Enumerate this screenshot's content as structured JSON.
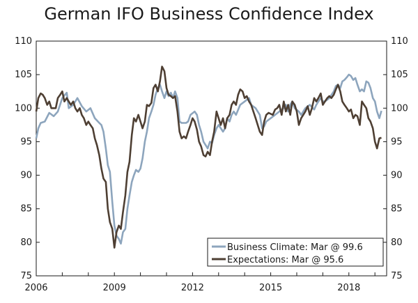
{
  "chart_data": {
    "type": "line",
    "title": "German IFO Business Confidence Index",
    "xlabel": "",
    "ylabel": "",
    "xlim": [
      2006.0,
      2019.45
    ],
    "ylim": [
      75,
      110
    ],
    "y_ticks": [
      75,
      80,
      85,
      90,
      95,
      100,
      105,
      110
    ],
    "x_ticks": [
      2006,
      2009,
      2012,
      2015,
      2018
    ],
    "grid": false,
    "legend_position": "bottom-right",
    "series": [
      {
        "name": "Business Climate: Mar @ 99.6",
        "color": "#8da5bd",
        "points": [
          [
            2006.0,
            95.5
          ],
          [
            2006.08,
            97.0
          ],
          [
            2006.17,
            97.8
          ],
          [
            2006.33,
            98.0
          ],
          [
            2006.5,
            99.3
          ],
          [
            2006.67,
            98.8
          ],
          [
            2006.83,
            99.5
          ],
          [
            2007.0,
            101.5
          ],
          [
            2007.17,
            102.3
          ],
          [
            2007.25,
            100.0
          ],
          [
            2007.42,
            100.5
          ],
          [
            2007.58,
            101.5
          ],
          [
            2007.75,
            100.3
          ],
          [
            2007.92,
            99.5
          ],
          [
            2008.08,
            100.0
          ],
          [
            2008.25,
            98.5
          ],
          [
            2008.42,
            97.8
          ],
          [
            2008.5,
            97.5
          ],
          [
            2008.58,
            96.5
          ],
          [
            2008.67,
            94.0
          ],
          [
            2008.75,
            91.5
          ],
          [
            2008.83,
            90.5
          ],
          [
            2008.92,
            86.0
          ],
          [
            2009.0,
            82.5
          ],
          [
            2009.08,
            81.0
          ],
          [
            2009.17,
            80.5
          ],
          [
            2009.25,
            79.8
          ],
          [
            2009.33,
            81.5
          ],
          [
            2009.42,
            82.0
          ],
          [
            2009.5,
            85.0
          ],
          [
            2009.58,
            87.0
          ],
          [
            2009.67,
            89.0
          ],
          [
            2009.75,
            90.0
          ],
          [
            2009.83,
            90.8
          ],
          [
            2009.92,
            90.5
          ],
          [
            2010.0,
            91.0
          ],
          [
            2010.08,
            92.5
          ],
          [
            2010.17,
            95.0
          ],
          [
            2010.25,
            96.5
          ],
          [
            2010.33,
            98.5
          ],
          [
            2010.42,
            99.5
          ],
          [
            2010.5,
            100.5
          ],
          [
            2010.58,
            102.0
          ],
          [
            2010.67,
            103.0
          ],
          [
            2010.75,
            103.5
          ],
          [
            2010.83,
            102.5
          ],
          [
            2010.92,
            101.5
          ],
          [
            2011.0,
            102.5
          ],
          [
            2011.08,
            101.8
          ],
          [
            2011.17,
            102.3
          ],
          [
            2011.25,
            101.5
          ],
          [
            2011.33,
            102.5
          ],
          [
            2011.42,
            101.5
          ],
          [
            2011.5,
            98.0
          ],
          [
            2011.58,
            97.8
          ],
          [
            2011.67,
            97.8
          ],
          [
            2011.75,
            97.8
          ],
          [
            2011.83,
            98.0
          ],
          [
            2011.92,
            99.0
          ],
          [
            2012.08,
            99.5
          ],
          [
            2012.17,
            99.0
          ],
          [
            2012.25,
            97.5
          ],
          [
            2012.33,
            96.5
          ],
          [
            2012.42,
            95.0
          ],
          [
            2012.5,
            94.5
          ],
          [
            2012.58,
            94.0
          ],
          [
            2012.67,
            95.0
          ],
          [
            2012.75,
            94.8
          ],
          [
            2012.83,
            96.0
          ],
          [
            2012.92,
            97.0
          ],
          [
            2013.0,
            97.5
          ],
          [
            2013.17,
            96.5
          ],
          [
            2013.25,
            97.0
          ],
          [
            2013.33,
            98.5
          ],
          [
            2013.42,
            98.0
          ],
          [
            2013.5,
            99.0
          ],
          [
            2013.58,
            99.5
          ],
          [
            2013.67,
            99.0
          ],
          [
            2013.83,
            100.5
          ],
          [
            2014.0,
            101.0
          ],
          [
            2014.17,
            101.5
          ],
          [
            2014.25,
            100.5
          ],
          [
            2014.42,
            100.0
          ],
          [
            2014.58,
            99.0
          ],
          [
            2014.67,
            97.0
          ],
          [
            2014.75,
            97.3
          ],
          [
            2014.83,
            98.0
          ],
          [
            2015.0,
            98.5
          ],
          [
            2015.17,
            99.0
          ],
          [
            2015.33,
            99.5
          ],
          [
            2015.42,
            99.8
          ],
          [
            2015.5,
            100.0
          ],
          [
            2015.58,
            100.5
          ],
          [
            2015.67,
            99.5
          ],
          [
            2015.75,
            100.5
          ],
          [
            2015.83,
            101.0
          ],
          [
            2015.92,
            100.0
          ],
          [
            2016.08,
            99.5
          ],
          [
            2016.17,
            99.0
          ],
          [
            2016.25,
            99.5
          ],
          [
            2016.33,
            100.0
          ],
          [
            2016.5,
            100.5
          ],
          [
            2016.67,
            99.8
          ],
          [
            2016.75,
            100.5
          ],
          [
            2016.83,
            101.0
          ],
          [
            2016.92,
            101.5
          ],
          [
            2017.0,
            101.0
          ],
          [
            2017.08,
            101.0
          ],
          [
            2017.25,
            101.5
          ],
          [
            2017.42,
            102.5
          ],
          [
            2017.5,
            103.3
          ],
          [
            2017.58,
            103.5
          ],
          [
            2017.67,
            103.0
          ],
          [
            2017.75,
            104.0
          ],
          [
            2017.83,
            104.2
          ],
          [
            2017.92,
            104.6
          ],
          [
            2018.0,
            105.0
          ],
          [
            2018.08,
            104.8
          ],
          [
            2018.17,
            104.2
          ],
          [
            2018.25,
            104.5
          ],
          [
            2018.33,
            103.5
          ],
          [
            2018.42,
            102.5
          ],
          [
            2018.5,
            102.8
          ],
          [
            2018.58,
            102.5
          ],
          [
            2018.67,
            104.0
          ],
          [
            2018.75,
            103.8
          ],
          [
            2018.83,
            103.0
          ],
          [
            2018.92,
            101.5
          ],
          [
            2019.0,
            101.0
          ],
          [
            2019.08,
            99.5
          ],
          [
            2019.17,
            98.5
          ],
          [
            2019.25,
            99.6
          ]
        ]
      },
      {
        "name": "Expectations: Mar @ 95.6",
        "color": "#4e3f33",
        "points": [
          [
            2006.0,
            99.5
          ],
          [
            2006.08,
            101.5
          ],
          [
            2006.17,
            102.2
          ],
          [
            2006.25,
            102.0
          ],
          [
            2006.33,
            101.5
          ],
          [
            2006.42,
            100.5
          ],
          [
            2006.5,
            101.0
          ],
          [
            2006.58,
            100.0
          ],
          [
            2006.75,
            100.0
          ],
          [
            2006.83,
            101.5
          ],
          [
            2006.92,
            102.0
          ],
          [
            2007.0,
            102.5
          ],
          [
            2007.08,
            101.0
          ],
          [
            2007.17,
            101.5
          ],
          [
            2007.25,
            101.0
          ],
          [
            2007.33,
            100.5
          ],
          [
            2007.42,
            101.0
          ],
          [
            2007.5,
            100.0
          ],
          [
            2007.58,
            99.5
          ],
          [
            2007.67,
            100.0
          ],
          [
            2007.75,
            99.0
          ],
          [
            2007.83,
            98.5
          ],
          [
            2007.92,
            97.5
          ],
          [
            2008.0,
            98.0
          ],
          [
            2008.08,
            97.5
          ],
          [
            2008.17,
            97.0
          ],
          [
            2008.25,
            95.5
          ],
          [
            2008.33,
            94.5
          ],
          [
            2008.42,
            93.0
          ],
          [
            2008.5,
            91.0
          ],
          [
            2008.58,
            89.5
          ],
          [
            2008.67,
            89.0
          ],
          [
            2008.75,
            85.0
          ],
          [
            2008.83,
            83.0
          ],
          [
            2008.92,
            82.0
          ],
          [
            2009.0,
            79.2
          ],
          [
            2009.08,
            81.5
          ],
          [
            2009.17,
            82.5
          ],
          [
            2009.25,
            82.0
          ],
          [
            2009.33,
            84.5
          ],
          [
            2009.42,
            87.0
          ],
          [
            2009.5,
            90.5
          ],
          [
            2009.58,
            92.0
          ],
          [
            2009.67,
            96.0
          ],
          [
            2009.75,
            98.5
          ],
          [
            2009.83,
            98.0
          ],
          [
            2009.92,
            99.0
          ],
          [
            2010.0,
            98.0
          ],
          [
            2010.08,
            97.0
          ],
          [
            2010.17,
            98.0
          ],
          [
            2010.25,
            100.5
          ],
          [
            2010.33,
            100.3
          ],
          [
            2010.42,
            100.8
          ],
          [
            2010.5,
            103.0
          ],
          [
            2010.58,
            103.5
          ],
          [
            2010.67,
            102.5
          ],
          [
            2010.75,
            104.0
          ],
          [
            2010.83,
            106.2
          ],
          [
            2010.92,
            105.5
          ],
          [
            2011.0,
            103.0
          ],
          [
            2011.08,
            102.0
          ],
          [
            2011.17,
            101.8
          ],
          [
            2011.25,
            101.5
          ],
          [
            2011.33,
            101.8
          ],
          [
            2011.42,
            99.5
          ],
          [
            2011.5,
            96.5
          ],
          [
            2011.58,
            95.5
          ],
          [
            2011.67,
            95.8
          ],
          [
            2011.75,
            95.5
          ],
          [
            2011.83,
            96.5
          ],
          [
            2011.92,
            97.5
          ],
          [
            2012.0,
            98.5
          ],
          [
            2012.08,
            98.0
          ],
          [
            2012.17,
            96.8
          ],
          [
            2012.25,
            95.0
          ],
          [
            2012.33,
            94.3
          ],
          [
            2012.42,
            93.0
          ],
          [
            2012.5,
            92.8
          ],
          [
            2012.58,
            93.5
          ],
          [
            2012.67,
            93.0
          ],
          [
            2012.75,
            95.0
          ],
          [
            2012.83,
            96.5
          ],
          [
            2012.92,
            99.5
          ],
          [
            2013.0,
            98.5
          ],
          [
            2013.08,
            97.5
          ],
          [
            2013.17,
            98.5
          ],
          [
            2013.25,
            97.0
          ],
          [
            2013.33,
            98.5
          ],
          [
            2013.42,
            99.0
          ],
          [
            2013.5,
            100.5
          ],
          [
            2013.58,
            101.0
          ],
          [
            2013.67,
            100.5
          ],
          [
            2013.75,
            102.0
          ],
          [
            2013.83,
            102.8
          ],
          [
            2013.92,
            102.5
          ],
          [
            2014.0,
            101.5
          ],
          [
            2014.08,
            101.8
          ],
          [
            2014.17,
            101.0
          ],
          [
            2014.25,
            100.5
          ],
          [
            2014.42,
            98.5
          ],
          [
            2014.58,
            96.5
          ],
          [
            2014.67,
            96.0
          ],
          [
            2014.75,
            98.0
          ],
          [
            2014.83,
            99.0
          ],
          [
            2014.92,
            99.3
          ],
          [
            2015.08,
            99.0
          ],
          [
            2015.17,
            99.8
          ],
          [
            2015.25,
            100.0
          ],
          [
            2015.33,
            100.5
          ],
          [
            2015.42,
            99.0
          ],
          [
            2015.5,
            101.0
          ],
          [
            2015.58,
            99.5
          ],
          [
            2015.67,
            100.5
          ],
          [
            2015.75,
            99.0
          ],
          [
            2015.83,
            101.0
          ],
          [
            2015.92,
            100.5
          ],
          [
            2016.0,
            99.5
          ],
          [
            2016.08,
            97.5
          ],
          [
            2016.17,
            98.5
          ],
          [
            2016.25,
            99.0
          ],
          [
            2016.33,
            99.5
          ],
          [
            2016.42,
            100.3
          ],
          [
            2016.5,
            99.0
          ],
          [
            2016.58,
            100.0
          ],
          [
            2016.67,
            101.5
          ],
          [
            2016.75,
            101.0
          ],
          [
            2016.83,
            101.5
          ],
          [
            2016.92,
            102.2
          ],
          [
            2017.0,
            100.5
          ],
          [
            2017.08,
            101.0
          ],
          [
            2017.17,
            101.5
          ],
          [
            2017.25,
            101.8
          ],
          [
            2017.33,
            101.5
          ],
          [
            2017.42,
            102.0
          ],
          [
            2017.5,
            102.8
          ],
          [
            2017.58,
            103.5
          ],
          [
            2017.67,
            102.5
          ],
          [
            2017.75,
            101.0
          ],
          [
            2017.83,
            100.5
          ],
          [
            2017.92,
            100.0
          ],
          [
            2018.0,
            99.5
          ],
          [
            2018.08,
            99.8
          ],
          [
            2018.17,
            98.5
          ],
          [
            2018.25,
            99.0
          ],
          [
            2018.33,
            98.8
          ],
          [
            2018.42,
            97.5
          ],
          [
            2018.5,
            101.0
          ],
          [
            2018.58,
            100.5
          ],
          [
            2018.67,
            100.0
          ],
          [
            2018.75,
            98.5
          ],
          [
            2018.83,
            98.0
          ],
          [
            2018.92,
            97.0
          ],
          [
            2019.0,
            95.0
          ],
          [
            2019.08,
            94.0
          ],
          [
            2019.17,
            95.5
          ],
          [
            2019.25,
            95.6
          ]
        ]
      }
    ]
  }
}
